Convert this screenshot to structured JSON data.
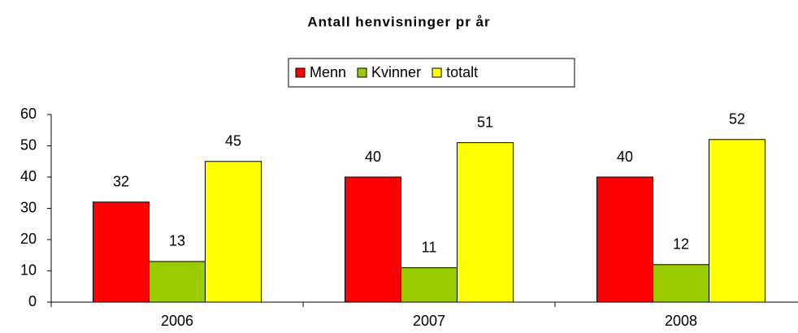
{
  "chart_data": {
    "type": "bar",
    "title": "Antall henvisninger pr år",
    "categories": [
      "2006",
      "2007",
      "2008"
    ],
    "series": [
      {
        "name": "Menn",
        "color": "#ff0000",
        "values": [
          32,
          40,
          40
        ]
      },
      {
        "name": "Kvinner",
        "color": "#99cc00",
        "values": [
          13,
          11,
          12
        ]
      },
      {
        "name": "totalt",
        "color": "#ffff00",
        "values": [
          45,
          51,
          52
        ]
      }
    ],
    "ylim": [
      0,
      60
    ],
    "yticks": [
      0,
      10,
      20,
      30,
      40,
      50,
      60
    ],
    "grid": false,
    "legend": "top"
  }
}
